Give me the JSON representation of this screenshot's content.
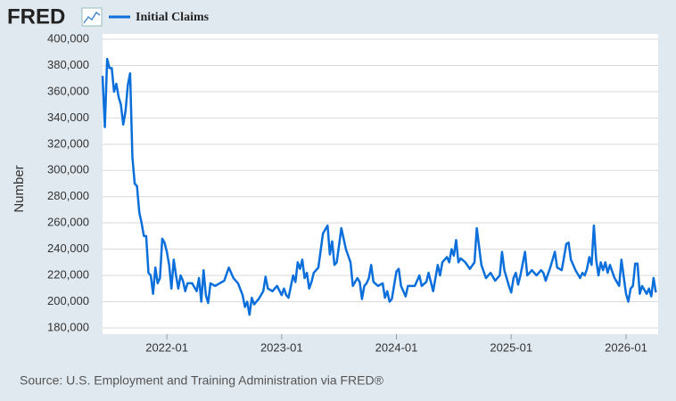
{
  "chart_data": {
    "type": "line",
    "brand": "FRED",
    "y_label": "Number",
    "source": "Source: U.S. Employment and Training Administration via FRED®",
    "xlim": [
      2021.44,
      2026.28
    ],
    "xticks": [
      {
        "value": 2022.0,
        "label": "2022-01"
      },
      {
        "value": 2023.0,
        "label": "2023-01"
      },
      {
        "value": 2024.0,
        "label": "2024-01"
      },
      {
        "value": 2025.0,
        "label": "2025-01"
      },
      {
        "value": 2026.0,
        "label": "2026-01"
      }
    ],
    "ylim": [
      180000,
      400000
    ],
    "yticks": [
      {
        "value": 180000,
        "label": "180,000"
      },
      {
        "value": 200000,
        "label": "200,000"
      },
      {
        "value": 220000,
        "label": "220,000"
      },
      {
        "value": 240000,
        "label": "240,000"
      },
      {
        "value": 260000,
        "label": "260,000"
      },
      {
        "value": 280000,
        "label": "280,000"
      },
      {
        "value": 300000,
        "label": "300,000"
      },
      {
        "value": 320000,
        "label": "320,000"
      },
      {
        "value": 340000,
        "label": "340,000"
      },
      {
        "value": 360000,
        "label": "360,000"
      },
      {
        "value": 380000,
        "label": "380,000"
      },
      {
        "value": 400000,
        "label": "400,000"
      }
    ],
    "grid": true,
    "x": [
      2021.44,
      2021.46,
      2021.48,
      2021.5,
      2021.52,
      2021.54,
      2021.56,
      2021.58,
      2021.6,
      2021.62,
      2021.64,
      2021.66,
      2021.68,
      2021.7,
      2021.72,
      2021.74,
      2021.76,
      2021.78,
      2021.8,
      2021.82,
      2021.84,
      2021.86,
      2021.88,
      2021.9,
      2021.92,
      2021.94,
      2021.96,
      2021.98,
      2022.0,
      2022.02,
      2022.04,
      2022.06,
      2022.08,
      2022.1,
      2022.12,
      2022.14,
      2022.16,
      2022.18,
      2022.22,
      2022.26,
      2022.28,
      2022.3,
      2022.32,
      2022.34,
      2022.36,
      2022.38,
      2022.42,
      2022.46,
      2022.5,
      2022.54,
      2022.58,
      2022.62,
      2022.66,
      2022.68,
      2022.7,
      2022.72,
      2022.74,
      2022.76,
      2022.8,
      2022.84,
      2022.86,
      2022.88,
      2022.92,
      2022.96,
      2023.0,
      2023.02,
      2023.04,
      2023.06,
      2023.1,
      2023.12,
      2023.14,
      2023.16,
      2023.18,
      2023.2,
      2023.22,
      2023.24,
      2023.26,
      2023.28,
      2023.32,
      2023.36,
      2023.4,
      2023.42,
      2023.44,
      2023.46,
      2023.48,
      2023.52,
      2023.56,
      2023.6,
      2023.62,
      2023.66,
      2023.68,
      2023.7,
      2023.72,
      2023.74,
      2023.76,
      2023.78,
      2023.8,
      2023.84,
      2023.88,
      2023.9,
      2023.92,
      2023.94,
      2023.96,
      2024.0,
      2024.02,
      2024.04,
      2024.08,
      2024.1,
      2024.16,
      2024.2,
      2024.22,
      2024.26,
      2024.28,
      2024.32,
      2024.36,
      2024.38,
      2024.4,
      2024.44,
      2024.46,
      2024.48,
      2024.5,
      2024.52,
      2024.54,
      2024.56,
      2024.6,
      2024.64,
      2024.68,
      2024.7,
      2024.74,
      2024.78,
      2024.82,
      2024.86,
      2024.9,
      2024.92,
      2024.94,
      2024.98,
      2025.0,
      2025.02,
      2025.04,
      2025.06,
      2025.08,
      2025.12,
      2025.14,
      2025.18,
      2025.22,
      2025.26,
      2025.28,
      2025.3,
      2025.34,
      2025.38,
      2025.4,
      2025.44,
      2025.48,
      2025.5,
      2025.52,
      2025.56,
      2025.6,
      2025.62,
      2025.64,
      2025.66,
      2025.68,
      2025.7,
      2025.72,
      2025.74,
      2025.76,
      2025.78,
      2025.8,
      2025.82,
      2025.84,
      2025.86,
      2025.9,
      2025.94,
      2025.96,
      2026.0,
      2026.02,
      2026.04,
      2026.06,
      2026.08,
      2026.1,
      2026.12,
      2026.14,
      2026.18,
      2026.2,
      2026.22,
      2026.24,
      2026.26
    ],
    "series": [
      {
        "name": "Initial Claims",
        "color": "#0a6fdb",
        "values": [
          372000,
          333000,
          385000,
          378000,
          378000,
          360000,
          366000,
          356000,
          350000,
          335000,
          345000,
          365000,
          374000,
          310000,
          290000,
          288000,
          268000,
          260000,
          250000,
          250000,
          222000,
          220000,
          206000,
          226000,
          214000,
          218000,
          248000,
          245000,
          238000,
          228000,
          210000,
          232000,
          220000,
          210000,
          220000,
          216000,
          208000,
          214000,
          214000,
          208000,
          218000,
          200000,
          224000,
          205000,
          199000,
          214000,
          212000,
          214000,
          216000,
          226000,
          218000,
          214000,
          205000,
          196000,
          200000,
          190000,
          203000,
          198000,
          202000,
          208000,
          219000,
          210000,
          208000,
          212000,
          205000,
          210000,
          205000,
          203000,
          220000,
          215000,
          230000,
          225000,
          232000,
          218000,
          222000,
          210000,
          215000,
          222000,
          226000,
          252000,
          258000,
          236000,
          246000,
          228000,
          230000,
          256000,
          240000,
          230000,
          212000,
          218000,
          215000,
          202000,
          212000,
          214000,
          218000,
          228000,
          215000,
          212000,
          214000,
          203000,
          208000,
          200000,
          202000,
          223000,
          225000,
          212000,
          204000,
          212000,
          212000,
          220000,
          212000,
          215000,
          222000,
          208000,
          228000,
          220000,
          230000,
          234000,
          230000,
          240000,
          235000,
          247000,
          230000,
          233000,
          230000,
          225000,
          230000,
          256000,
          228000,
          218000,
          222000,
          216000,
          220000,
          238000,
          224000,
          212000,
          207000,
          218000,
          222000,
          213000,
          220000,
          238000,
          220000,
          224000,
          220000,
          224000,
          222000,
          216000,
          226000,
          238000,
          226000,
          224000,
          244000,
          245000,
          232000,
          224000,
          218000,
          222000,
          220000,
          225000,
          234000,
          228000,
          258000,
          232000,
          220000,
          230000,
          224000,
          230000,
          222000,
          228000,
          218000,
          212000,
          232000,
          206000,
          200000,
          210000,
          212000,
          229000,
          229000,
          206000,
          212000,
          206000,
          210000,
          204000,
          218000,
          207000
        ]
      }
    ]
  }
}
